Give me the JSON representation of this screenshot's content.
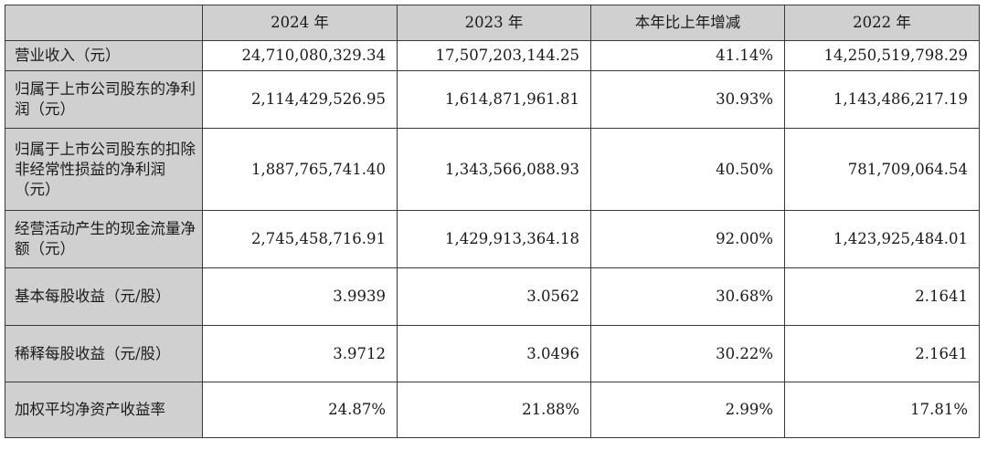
{
  "headers": [
    "",
    "2024 年",
    "2023 年",
    "本年比上年增减",
    "2022 年"
  ],
  "rows": [
    {
      "label": "营业收入（元）",
      "v2024": "24,710,080,329.34",
      "v2023": "17,507,203,144.25",
      "change": "41.14%",
      "v2022": "14,250,519,798.29"
    },
    {
      "label": "归属于上市公司股东的净利润（元）",
      "v2024": "2,114,429,526.95",
      "v2023": "1,614,871,961.81",
      "change": "30.93%",
      "v2022": "1,143,486,217.19"
    },
    {
      "label": "归属于上市公司股东的扣除非经常性损益的净利润（元）",
      "v2024": "1,887,765,741.40",
      "v2023": "1,343,566,088.93",
      "change": "40.50%",
      "v2022": "781,709,064.54"
    },
    {
      "label": "经营活动产生的现金流量净额（元）",
      "v2024": "2,745,458,716.91",
      "v2023": "1,429,913,364.18",
      "change": "92.00%",
      "v2022": "1,423,925,484.01"
    },
    {
      "label": "基本每股收益（元/股）",
      "v2024": "3.9939",
      "v2023": "3.0562",
      "change": "30.68%",
      "v2022": "2.1641"
    },
    {
      "label": "稀释每股收益（元/股）",
      "v2024": "3.9712",
      "v2023": "3.0496",
      "change": "30.22%",
      "v2022": "2.1641"
    },
    {
      "label": "加权平均净资产收益率",
      "v2024": "24.87%",
      "v2023": "21.88%",
      "change": "2.99%",
      "v2022": "17.81%"
    }
  ]
}
